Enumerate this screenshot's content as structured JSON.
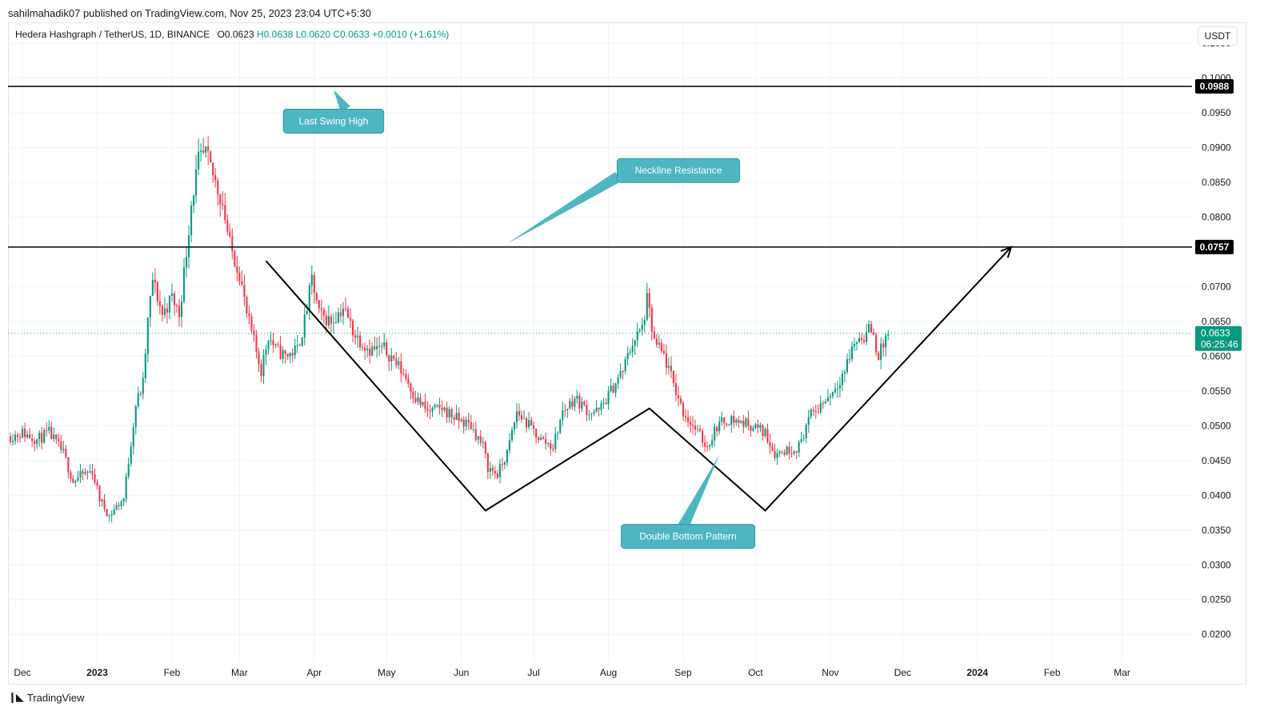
{
  "header": {
    "publish_text": "sahilmahadik07 published on TradingView.com, Nov 25, 2023 23:04 UTC+5:30",
    "symbol": "Hedera Hashgraph / TetherUS, 1D, BINANCE",
    "open": "O0.0623",
    "high": "H0.0638",
    "low": "L0.0620",
    "close": "C0.0633",
    "change": "+0.0010 (+1.61%)",
    "unit": "USDT"
  },
  "footer": {
    "logo_text": "TradingView"
  },
  "colors": {
    "up": "#089981",
    "down": "#f23645",
    "callout": "#4db6c0",
    "current_price": "#089981",
    "line": "#000000",
    "grid": "#f0f3fa"
  },
  "chart_data": {
    "type": "candlestick",
    "ylim": [
      0.016,
      0.108
    ],
    "y_ticks": [
      "0.0200",
      "0.0250",
      "0.0300",
      "0.0350",
      "0.0400",
      "0.0450",
      "0.0500",
      "0.0550",
      "0.0600",
      "0.0650",
      "0.0700",
      "0.0800",
      "0.0850",
      "0.0900",
      "0.0950",
      "0.1000",
      "0.1050"
    ],
    "x_ticks": [
      "Dec",
      "2023",
      "Feb",
      "Mar",
      "Apr",
      "May",
      "Jun",
      "Jul",
      "Aug",
      "Sep",
      "Oct",
      "Nov",
      "Dec",
      "2024",
      "Feb",
      "Mar"
    ],
    "x_tick_dates": [
      "2022-12-01",
      "2023-01-01",
      "2023-02-01",
      "2023-03-01",
      "2023-04-01",
      "2023-05-01",
      "2023-06-01",
      "2023-07-01",
      "2023-08-01",
      "2023-09-01",
      "2023-10-01",
      "2023-11-01",
      "2023-12-01",
      "2024-01-01",
      "2024-02-01",
      "2024-03-01"
    ],
    "bold_ticks": [
      "2023",
      "2024"
    ],
    "x_start": "2022-11-25",
    "x_end": "2024-03-30",
    "horizontal_levels": [
      {
        "value": 0.0988,
        "label": "0.0988"
      },
      {
        "value": 0.0757,
        "label": "0.0757"
      }
    ],
    "current_price": {
      "value": 0.0633,
      "label": "0.0633",
      "countdown": "06:25:46"
    },
    "price_path": [
      [
        "2022-11-26",
        0.0485
      ],
      [
        "2022-12-01",
        0.049
      ],
      [
        "2022-12-07",
        0.048
      ],
      [
        "2022-12-12",
        0.049
      ],
      [
        "2022-12-18",
        0.046
      ],
      [
        "2022-12-22",
        0.042
      ],
      [
        "2022-12-26",
        0.043
      ],
      [
        "2022-12-30",
        0.0435
      ],
      [
        "2023-01-02",
        0.0395
      ],
      [
        "2023-01-06",
        0.037
      ],
      [
        "2023-01-08",
        0.038
      ],
      [
        "2023-01-12",
        0.0395
      ],
      [
        "2023-01-14",
        0.045
      ],
      [
        "2023-01-17",
        0.053
      ],
      [
        "2023-01-20",
        0.056
      ],
      [
        "2023-01-22",
        0.065
      ],
      [
        "2023-01-24",
        0.071
      ],
      [
        "2023-01-28",
        0.066
      ],
      [
        "2023-02-01",
        0.0685
      ],
      [
        "2023-02-04",
        0.066
      ],
      [
        "2023-02-07",
        0.075
      ],
      [
        "2023-02-09",
        0.082
      ],
      [
        "2023-02-12",
        0.088
      ],
      [
        "2023-02-15",
        0.089
      ],
      [
        "2023-02-18",
        0.086
      ],
      [
        "2023-02-22",
        0.082
      ],
      [
        "2023-02-25",
        0.076
      ],
      [
        "2023-03-01",
        0.072
      ],
      [
        "2023-03-04",
        0.066
      ],
      [
        "2023-03-07",
        0.062
      ],
      [
        "2023-03-10",
        0.058
      ],
      [
        "2023-03-13",
        0.063
      ],
      [
        "2023-03-16",
        0.061
      ],
      [
        "2023-03-20",
        0.06
      ],
      [
        "2023-03-25",
        0.061
      ],
      [
        "2023-03-28",
        0.065
      ],
      [
        "2023-03-31",
        0.071
      ],
      [
        "2023-04-03",
        0.066
      ],
      [
        "2023-04-08",
        0.065
      ],
      [
        "2023-04-13",
        0.067
      ],
      [
        "2023-04-18",
        0.063
      ],
      [
        "2023-04-24",
        0.061
      ],
      [
        "2023-04-30",
        0.061
      ],
      [
        "2023-05-04",
        0.0595
      ],
      [
        "2023-05-09",
        0.057
      ],
      [
        "2023-05-13",
        0.054
      ],
      [
        "2023-05-18",
        0.052
      ],
      [
        "2023-05-24",
        0.0525
      ],
      [
        "2023-05-30",
        0.051
      ],
      [
        "2023-06-05",
        0.05
      ],
      [
        "2023-06-10",
        0.047
      ],
      [
        "2023-06-12",
        0.044
      ],
      [
        "2023-06-16",
        0.043
      ],
      [
        "2023-06-20",
        0.046
      ],
      [
        "2023-06-24",
        0.052
      ],
      [
        "2023-06-29",
        0.05
      ],
      [
        "2023-07-04",
        0.048
      ],
      [
        "2023-07-09",
        0.047
      ],
      [
        "2023-07-13",
        0.052
      ],
      [
        "2023-07-18",
        0.054
      ],
      [
        "2023-07-24",
        0.052
      ],
      [
        "2023-07-28",
        0.052
      ],
      [
        "2023-08-02",
        0.055
      ],
      [
        "2023-08-07",
        0.058
      ],
      [
        "2023-08-11",
        0.062
      ],
      [
        "2023-08-15",
        0.064
      ],
      [
        "2023-08-17",
        0.068
      ],
      [
        "2023-08-20",
        0.062
      ],
      [
        "2023-08-24",
        0.06
      ],
      [
        "2023-08-28",
        0.056
      ],
      [
        "2023-09-01",
        0.052
      ],
      [
        "2023-09-06",
        0.0495
      ],
      [
        "2023-09-11",
        0.047
      ],
      [
        "2023-09-15",
        0.05
      ],
      [
        "2023-09-20",
        0.051
      ],
      [
        "2023-09-25",
        0.0505
      ],
      [
        "2023-09-30",
        0.05
      ],
      [
        "2023-10-05",
        0.049
      ],
      [
        "2023-10-09",
        0.046
      ],
      [
        "2023-10-14",
        0.0465
      ],
      [
        "2023-10-19",
        0.047
      ],
      [
        "2023-10-23",
        0.051
      ],
      [
        "2023-10-28",
        0.053
      ],
      [
        "2023-11-02",
        0.055
      ],
      [
        "2023-11-07",
        0.058
      ],
      [
        "2023-11-11",
        0.062
      ],
      [
        "2023-11-15",
        0.063
      ],
      [
        "2023-11-18",
        0.064
      ],
      [
        "2023-11-21",
        0.06
      ],
      [
        "2023-11-25",
        0.0633
      ]
    ],
    "pattern_lines": [
      {
        "name": "double-bottom-w",
        "points": [
          [
            "2023-03-12",
            0.0737
          ],
          [
            "2023-06-11",
            0.0378
          ],
          [
            "2023-08-18",
            0.0525
          ],
          [
            "2023-10-05",
            0.0378
          ],
          [
            "2024-01-15",
            0.0757
          ]
        ],
        "arrow": true
      },
      {
        "name": "neckline-callout-pointer",
        "points": [
          [
            "2023-06-20",
            0.0762
          ],
          [
            "2023-08-05",
            0.0858
          ]
        ],
        "callout": true
      },
      {
        "name": "double-bottom-callout-pointer",
        "points": [
          [
            "2023-09-16",
            0.0458
          ],
          [
            "2023-09-01",
            0.0355
          ]
        ],
        "callout": true
      },
      {
        "name": "swing-high-callout-pointer",
        "points": [
          [
            "2023-04-09",
            0.0983
          ],
          [
            "2023-04-14",
            0.0955
          ]
        ],
        "callout": true
      }
    ],
    "annotations": [
      {
        "text": "Last Swing High",
        "date": "2023-04-09",
        "value": 0.0938
      },
      {
        "text": "Neckline Resistance",
        "date": "2023-08-30",
        "value": 0.0867
      },
      {
        "text": "Double Bottom Pattern",
        "date": "2023-09-03",
        "value": 0.0341
      }
    ]
  }
}
